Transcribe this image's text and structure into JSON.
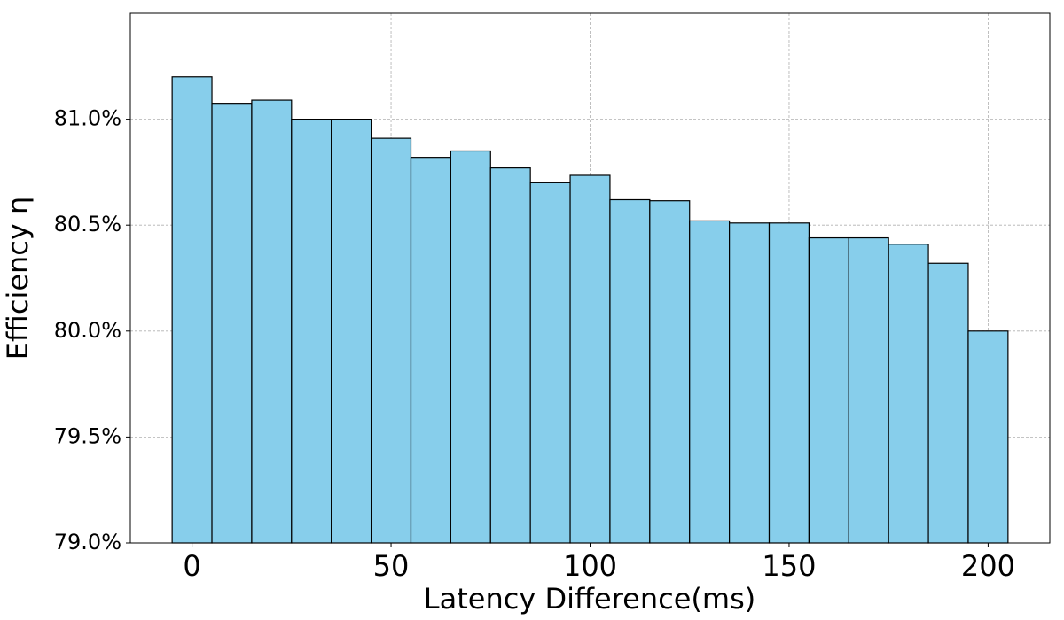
{
  "chart_data": {
    "type": "bar",
    "x_label": "Latency Difference(ms)",
    "y_label": "Efficiency η",
    "x": [
      0,
      10,
      20,
      30,
      40,
      50,
      60,
      70,
      80,
      90,
      100,
      110,
      120,
      130,
      140,
      150,
      160,
      170,
      180,
      190,
      200
    ],
    "values": [
      81.2,
      81.075,
      81.09,
      81.0,
      81.0,
      80.91,
      80.82,
      80.85,
      80.77,
      80.7,
      80.735,
      80.62,
      80.615,
      80.52,
      80.51,
      80.51,
      80.44,
      80.44,
      80.41,
      80.32,
      80.0
    ],
    "bar_width": 10,
    "color": "#87ceeb",
    "edge_color": "#000000",
    "xlim": [
      -15.5,
      215.5
    ],
    "xticks": [
      0,
      50,
      100,
      150,
      200
    ],
    "ylim": [
      79.0,
      81.5
    ],
    "yticks": [
      {
        "value": 79.0,
        "label": "79.0%"
      },
      {
        "value": 79.5,
        "label": "79.5%"
      },
      {
        "value": 80.0,
        "label": "80.0%"
      },
      {
        "value": 80.5,
        "label": "80.5%"
      },
      {
        "value": 81.0,
        "label": "81.0%"
      }
    ],
    "grid": true
  }
}
